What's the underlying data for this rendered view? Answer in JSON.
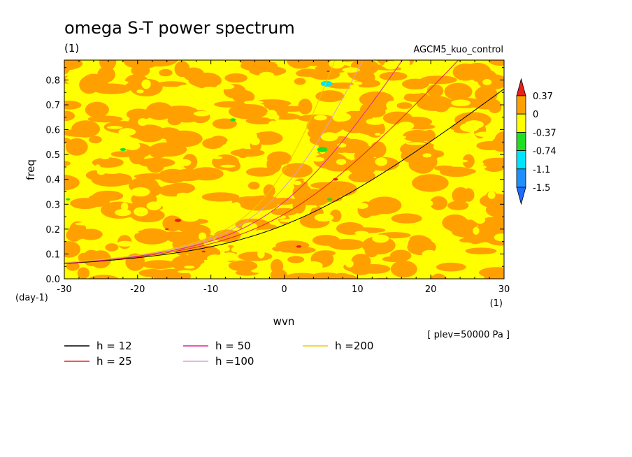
{
  "chart_data": {
    "type": "heatmap",
    "title": "omega S-T power spectrum",
    "subtitle": "(1)",
    "run_label": "AGCM5_kuo_control",
    "xlabel": "wvn",
    "x_unit": "(1)",
    "ylabel": "freq",
    "y_unit": "(day-1)",
    "xlim": [
      -30,
      30
    ],
    "ylim": [
      0,
      0.88
    ],
    "x_ticks": [
      -30,
      -20,
      -10,
      0,
      10,
      20,
      30
    ],
    "y_ticks": [
      0.0,
      0.1,
      0.2,
      0.3,
      0.4,
      0.5,
      0.6,
      0.7,
      0.8
    ],
    "y_tick_labels": [
      "0.0",
      "0.1",
      "0.2",
      "0.3",
      "0.4",
      "0.5",
      "0.6",
      "0.7",
      "0.8"
    ],
    "note": "[ plev=50000 Pa ]",
    "colorbar": {
      "levels": [
        "0.37",
        "0",
        "-0.37",
        "-0.74",
        "-1.1",
        "-1.5"
      ],
      "colors": [
        "#e8201c",
        "#ffa000",
        "#ffff00",
        "#22dd22",
        "#00e5ff",
        "#1e90ff",
        "#1e6bff"
      ],
      "dominant_field_colors": [
        "#ffa000",
        "#ffff00"
      ]
    },
    "dispersion_curves": [
      {
        "name": "h = 12",
        "h": 12,
        "color": "#000000"
      },
      {
        "name": "h = 25",
        "h": 25,
        "color": "#e8201c"
      },
      {
        "name": "h = 50",
        "h": 50,
        "color": "#e020a0"
      },
      {
        "name": "h =100",
        "h": 100,
        "color": "#d8a0d8"
      },
      {
        "name": "h =200",
        "h": 200,
        "color": "#f0c800"
      }
    ],
    "patches": [
      {
        "k": 5.8,
        "f": 0.785,
        "r": 0.8,
        "color": "#00e5ff"
      },
      {
        "k": 5.2,
        "f": 0.52,
        "r": 0.7,
        "color": "#22dd22"
      },
      {
        "k": -22,
        "f": 0.52,
        "r": 0.4,
        "color": "#22dd22"
      },
      {
        "k": -7,
        "f": 0.64,
        "r": 0.4,
        "color": "#22dd22"
      },
      {
        "k": -29.5,
        "f": 0.32,
        "r": 0.3,
        "color": "#22dd22"
      },
      {
        "k": 6.2,
        "f": 0.32,
        "r": 0.35,
        "color": "#22dd22"
      },
      {
        "k": 7,
        "f": 0.4,
        "r": 0.35,
        "color": "#e8201c"
      },
      {
        "k": -14.5,
        "f": 0.235,
        "r": 0.45,
        "color": "#e8201c"
      },
      {
        "k": 2,
        "f": 0.13,
        "r": 0.35,
        "color": "#e8201c"
      },
      {
        "k": 6,
        "f": 0.835,
        "r": 0.2,
        "color": "#e8201c"
      },
      {
        "k": -16,
        "f": 0.2,
        "r": 0.25,
        "color": "#e8201c"
      },
      {
        "k": -11,
        "f": 0.11,
        "r": 0.25,
        "color": "#e8201c"
      }
    ]
  }
}
